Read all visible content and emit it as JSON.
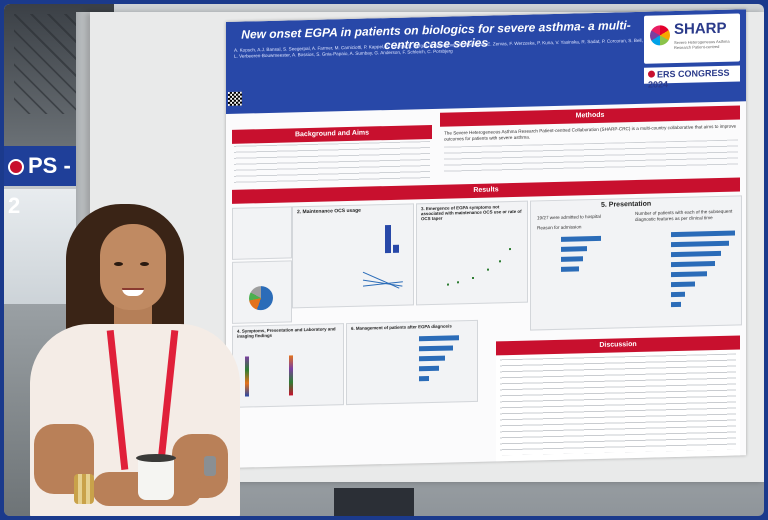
{
  "photo": {
    "description_alt": "",
    "sign": {
      "text": "PS - 2"
    }
  },
  "poster": {
    "title": "New onset EGPA in patients on biologics for severe asthma- a multi-centre case series",
    "authors": "A. Kopsch, A.J. Bansal, S. Seegerpal, A. Farmer, M. Camiciotti, P. Kappel, Z. Csoma, S. Skrgat, B. Milenkovic, K. Bieksiene, E. Zervas, F. Werzoska, P. Kuna, V. Yasinska, R. Sadat, P. Corcoran, S. Bell, L. Verbeeren-Bouwmeester, A. Bossios, S. Gnia-Papaio, A. Sumbay, G. Anderson, F. Schleich, C. Porsbjerg",
    "logos": {
      "sharp": "SHARP",
      "sharp_sub": "Severe Heterogeneous Asthma Research Patient-centred",
      "ers": "ERS CONGRESS 2024"
    },
    "sections": {
      "background": "Background and Aims",
      "methods": "Methods",
      "results": "Results",
      "discussion": "Discussion"
    },
    "panels": {
      "p2": "2. Maintenance OCS usage",
      "p3": "3. Emergence of EGPA symptoms not associated with maintenance OCS use or rate of OCS taper",
      "p4": "4. Symptoms, Presentation and Laboratory and imaging findings",
      "p5": "5. Presentation",
      "p6": "6. Management of patients after EGPA diagnosis"
    },
    "snippets": {
      "methods_text": "The Severe Heterogeneous Asthma Research Patient-centred Collaboration (SHARP-CRC) is a multi-country collaborative that aims to improve outcomes for patients with severe asthma.",
      "results_admitted": "19/27 were admitted to hospital",
      "results_number": "Number of patients with each of the subsequent diagnostic features as per clinical time",
      "reason_admission": "Reason for admission"
    }
  }
}
